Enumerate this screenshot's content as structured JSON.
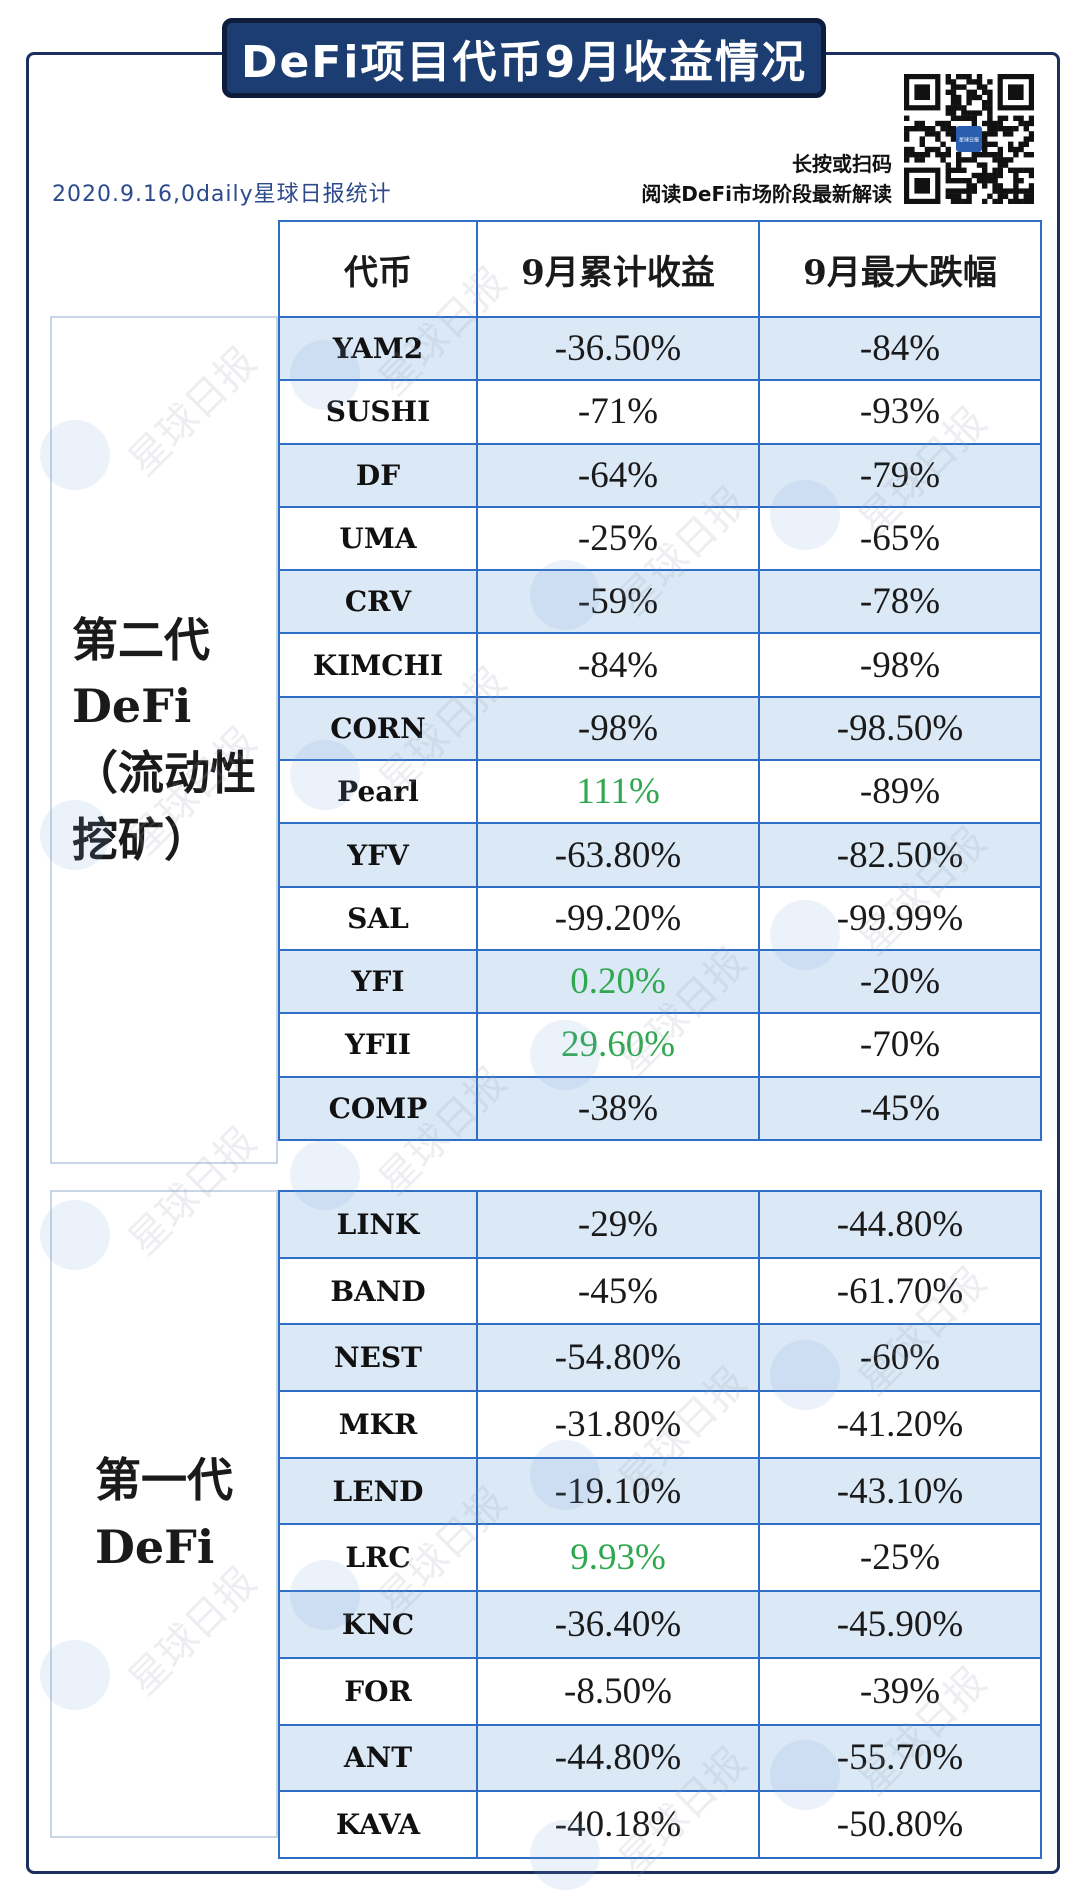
{
  "header": {
    "title": "DeFi项目代币9月收益情况",
    "source": "2020.9.16,0daily星球日报统计",
    "scan_prompt_1": "长按或扫码",
    "scan_prompt_2": "阅读DeFi市场阶段最新解读",
    "qr_logo_text": "星球日报"
  },
  "table": {
    "headers": [
      "代币",
      "9月累计收益",
      "9月最大跌幅"
    ],
    "groups": [
      {
        "label_lines": [
          "第二代",
          "DeFi",
          "（流动性",
          "挖矿）"
        ],
        "rows": [
          {
            "token": "YAM2",
            "return": "-36.50%",
            "drawdown": "-84%",
            "positive": false
          },
          {
            "token": "SUSHI",
            "return": "-71%",
            "drawdown": "-93%",
            "positive": false
          },
          {
            "token": "DF",
            "return": "-64%",
            "drawdown": "-79%",
            "positive": false
          },
          {
            "token": "UMA",
            "return": "-25%",
            "drawdown": "-65%",
            "positive": false
          },
          {
            "token": "CRV",
            "return": "-59%",
            "drawdown": "-78%",
            "positive": false
          },
          {
            "token": "KIMCHI",
            "return": "-84%",
            "drawdown": "-98%",
            "positive": false
          },
          {
            "token": "CORN",
            "return": "-98%",
            "drawdown": "-98.50%",
            "positive": false
          },
          {
            "token": "Pearl",
            "return": "111%",
            "drawdown": "-89%",
            "positive": true
          },
          {
            "token": "YFV",
            "return": "-63.80%",
            "drawdown": "-82.50%",
            "positive": false
          },
          {
            "token": "SAL",
            "return": "-99.20%",
            "drawdown": "-99.99%",
            "positive": false
          },
          {
            "token": "YFI",
            "return": "0.20%",
            "drawdown": "-20%",
            "positive": true
          },
          {
            "token": "YFII",
            "return": "29.60%",
            "drawdown": "-70%",
            "positive": true
          },
          {
            "token": "COMP",
            "return": "-38%",
            "drawdown": "-45%",
            "positive": false
          }
        ]
      },
      {
        "label_lines": [
          "第一代",
          "DeFi"
        ],
        "rows": [
          {
            "token": "LINK",
            "return": "-29%",
            "drawdown": "-44.80%",
            "positive": false
          },
          {
            "token": "BAND",
            "return": "-45%",
            "drawdown": "-61.70%",
            "positive": false
          },
          {
            "token": "NEST",
            "return": "-54.80%",
            "drawdown": "-60%",
            "positive": false
          },
          {
            "token": "MKR",
            "return": "-31.80%",
            "drawdown": "-41.20%",
            "positive": false
          },
          {
            "token": "LEND",
            "return": "-19.10%",
            "drawdown": "-43.10%",
            "positive": false
          },
          {
            "token": "LRC",
            "return": "9.93%",
            "drawdown": "-25%",
            "positive": true
          },
          {
            "token": "KNC",
            "return": "-36.40%",
            "drawdown": "-45.90%",
            "positive": false
          },
          {
            "token": "FOR",
            "return": "-8.50%",
            "drawdown": "-39%",
            "positive": false
          },
          {
            "token": "ANT",
            "return": "-44.80%",
            "drawdown": "-55.70%",
            "positive": false
          },
          {
            "token": "KAVA",
            "return": "-40.18%",
            "drawdown": "-50.80%",
            "positive": false
          }
        ]
      }
    ]
  },
  "watermark": {
    "text": "星球日报"
  },
  "colors": {
    "title_bg": "#1c3d72",
    "accent_blue": "#2f6ec6",
    "row_alt": "#dbe8f6",
    "positive_green": "#2fa84f"
  }
}
